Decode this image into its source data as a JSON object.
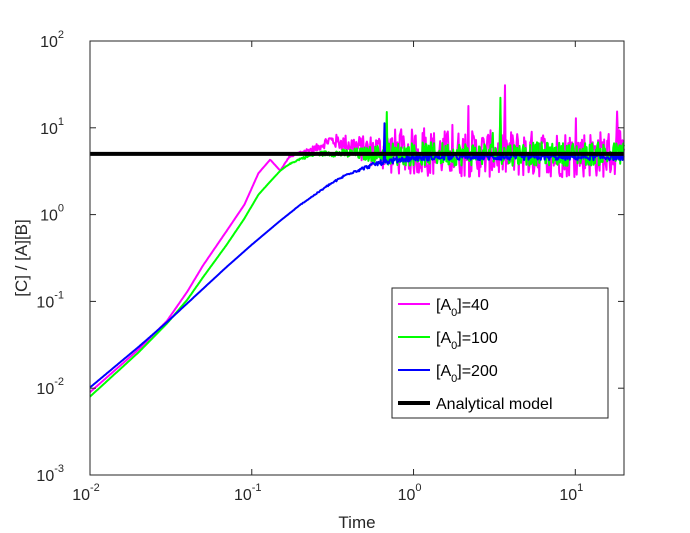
{
  "chart_data": {
    "type": "line",
    "xlabel": "Time",
    "ylabel": "[C] / [A][B]",
    "xscale": "log",
    "yscale": "log",
    "xlim": [
      0.01,
      20
    ],
    "ylim": [
      0.001,
      100
    ],
    "x_ticks": [
      {
        "base": "10",
        "exp": "-2",
        "value": 0.01
      },
      {
        "base": "10",
        "exp": "-1",
        "value": 0.1
      },
      {
        "base": "10",
        "exp": "0",
        "value": 1
      },
      {
        "base": "10",
        "exp": "1",
        "value": 10
      }
    ],
    "y_ticks": [
      {
        "base": "10",
        "exp": "-3",
        "value": 0.001
      },
      {
        "base": "10",
        "exp": "-2",
        "value": 0.01
      },
      {
        "base": "10",
        "exp": "-1",
        "value": 0.1
      },
      {
        "base": "10",
        "exp": "0",
        "value": 1
      },
      {
        "base": "10",
        "exp": "1",
        "value": 10
      },
      {
        "base": "10",
        "exp": "2",
        "value": 100
      }
    ],
    "legend_position": "lower-right",
    "series": [
      {
        "name_parts": {
          "prefix": "[A",
          "sub": "0",
          "suffix": "]=40"
        },
        "color": "#ff00ff",
        "noise": 0.9,
        "points": [
          [
            0.01,
            0.009
          ],
          [
            0.02,
            0.028
          ],
          [
            0.03,
            0.06
          ],
          [
            0.04,
            0.13
          ],
          [
            0.05,
            0.26
          ],
          [
            0.07,
            0.65
          ],
          [
            0.09,
            1.3
          ],
          [
            0.11,
            3.0
          ],
          [
            0.13,
            4.3
          ],
          [
            0.15,
            3.2
          ],
          [
            0.17,
            4.6
          ],
          [
            0.2,
            5.2
          ],
          [
            0.25,
            5.8
          ],
          [
            0.3,
            7.2
          ],
          [
            0.4,
            6.5
          ],
          [
            0.5,
            5.6
          ],
          [
            0.7,
            5.3
          ],
          [
            1,
            5.2
          ],
          [
            2,
            5.0
          ],
          [
            5,
            5.0
          ],
          [
            10,
            5.0
          ],
          [
            20,
            5.0
          ]
        ]
      },
      {
        "name_parts": {
          "prefix": "[A",
          "sub": "0",
          "suffix": "]=100"
        },
        "color": "#00ff00",
        "noise": 0.45,
        "points": [
          [
            0.01,
            0.008
          ],
          [
            0.02,
            0.026
          ],
          [
            0.03,
            0.056
          ],
          [
            0.04,
            0.105
          ],
          [
            0.05,
            0.19
          ],
          [
            0.07,
            0.45
          ],
          [
            0.09,
            0.9
          ],
          [
            0.11,
            1.7
          ],
          [
            0.13,
            2.4
          ],
          [
            0.15,
            3.2
          ],
          [
            0.17,
            3.8
          ],
          [
            0.2,
            4.4
          ],
          [
            0.25,
            5.0
          ],
          [
            0.3,
            5.1
          ],
          [
            0.5,
            5.0
          ],
          [
            1,
            5.0
          ],
          [
            2,
            5.0
          ],
          [
            5,
            5.0
          ],
          [
            10,
            5.0
          ],
          [
            20,
            5.0
          ]
        ]
      },
      {
        "name_parts": {
          "prefix": "[A",
          "sub": "0",
          "suffix": "]=200"
        },
        "color": "#0000ff",
        "noise": 0.12,
        "points": [
          [
            0.01,
            0.0102
          ],
          [
            0.02,
            0.03
          ],
          [
            0.03,
            0.058
          ],
          [
            0.05,
            0.14
          ],
          [
            0.07,
            0.25
          ],
          [
            0.1,
            0.45
          ],
          [
            0.15,
            0.85
          ],
          [
            0.2,
            1.3
          ],
          [
            0.3,
            2.2
          ],
          [
            0.4,
            3.0
          ],
          [
            0.6,
            3.9
          ],
          [
            0.8,
            4.3
          ],
          [
            1,
            4.5
          ],
          [
            1.5,
            4.6
          ],
          [
            2,
            4.6
          ],
          [
            5,
            4.6
          ],
          [
            10,
            4.6
          ],
          [
            20,
            4.6
          ]
        ]
      },
      {
        "name_parts": {
          "prefix": "Analytical model",
          "sub": "",
          "suffix": ""
        },
        "color": "#000000",
        "noise": 0,
        "points": [
          [
            0.01,
            5
          ],
          [
            20,
            5
          ]
        ]
      }
    ]
  }
}
